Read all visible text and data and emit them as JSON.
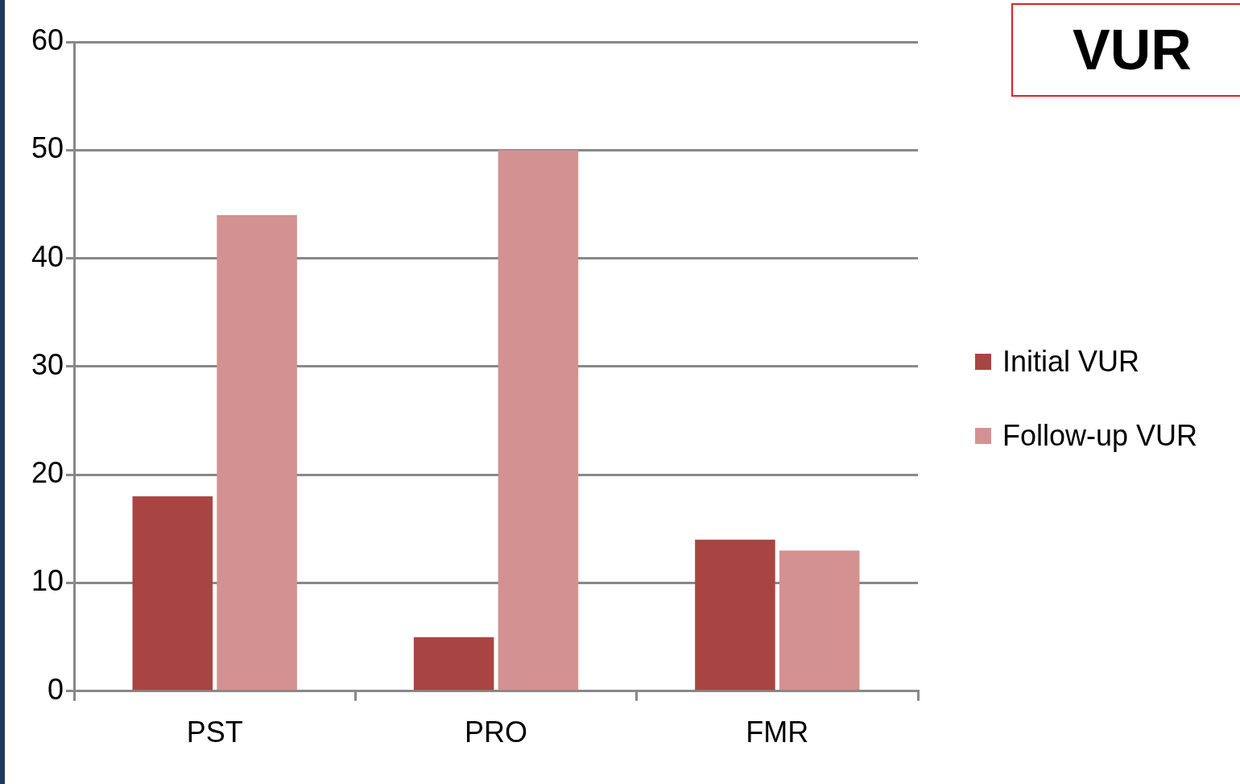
{
  "chart_data": {
    "type": "bar",
    "title": "VUR",
    "categories": [
      "PST",
      "PRO",
      "FMR"
    ],
    "series": [
      {
        "name": "Initial VUR",
        "color": "#a84543",
        "values": [
          18,
          5,
          14
        ]
      },
      {
        "name": "Follow-up VUR",
        "color": "#d39291",
        "values": [
          44,
          50,
          13
        ]
      }
    ],
    "ylim": [
      0,
      60
    ],
    "yticks": [
      0,
      10,
      20,
      30,
      40,
      50,
      60
    ],
    "grid": "y",
    "legend": "right"
  }
}
